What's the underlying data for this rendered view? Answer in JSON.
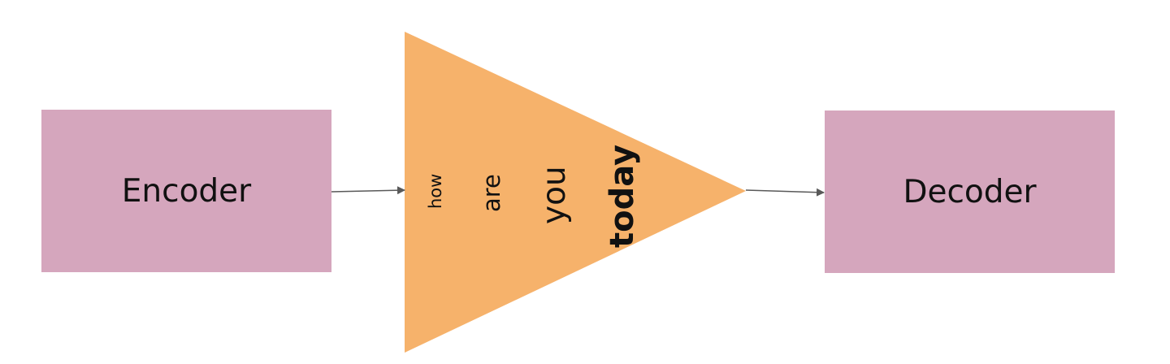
{
  "encoder": {
    "label": "Encoder"
  },
  "decoder": {
    "label": "Decoder"
  },
  "bottleneck": {
    "words": [
      "how",
      "are",
      "you",
      "today"
    ]
  },
  "colors": {
    "box_fill": "#d5a6bd",
    "triangle_fill": "#f6b26b",
    "arrow": "#595959",
    "text": "#111111"
  }
}
